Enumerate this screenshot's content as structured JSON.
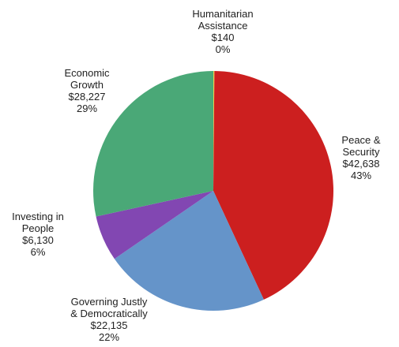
{
  "chart_data": {
    "type": "pie",
    "title": "",
    "slices": [
      {
        "label": [
          "Humanitarian",
          "Assistance"
        ],
        "value": 140,
        "value_text": "$140",
        "percent_text": "0%",
        "color": "#e8d44d"
      },
      {
        "label": [
          "Peace &",
          "Security"
        ],
        "value": 42638,
        "value_text": "$42,638",
        "percent_text": "43%",
        "color": "#cc1f1f"
      },
      {
        "label": [
          "Governing Justly",
          "& Democratically"
        ],
        "value": 22135,
        "value_text": "$22,135",
        "percent_text": "22%",
        "color": "#6594c9"
      },
      {
        "label": [
          "Investing in",
          "People"
        ],
        "value": 6130,
        "value_text": "$6,130",
        "percent_text": "6%",
        "color": "#8247b2"
      },
      {
        "label": [
          "Economic",
          "Growth"
        ],
        "value": 28227,
        "value_text": "$28,227",
        "percent_text": "29%",
        "color": "#4aa877"
      }
    ],
    "legend": "none",
    "label_placement": "outside"
  }
}
